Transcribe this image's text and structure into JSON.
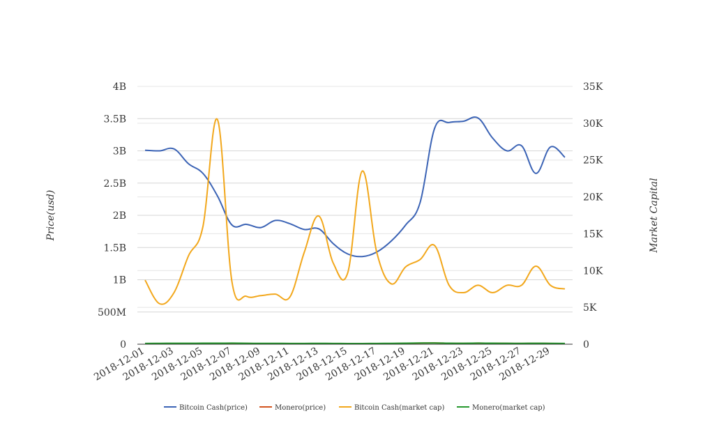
{
  "chart_data": {
    "type": "line",
    "title": "",
    "ylabel": "Price(usd)",
    "y2label": "Market Capital",
    "ylim": [
      0,
      4000000000
    ],
    "y2lim": [
      0,
      35000
    ],
    "left_ticks": [
      "0",
      "500M",
      "1B",
      "1.5B",
      "2B",
      "2.5B",
      "3B",
      "3.5B",
      "4B"
    ],
    "right_ticks": [
      "0",
      "5K",
      "10K",
      "15K",
      "20K",
      "25K",
      "30K",
      "35K"
    ],
    "x": [
      "2018-12-01",
      "2018-12-02",
      "2018-12-03",
      "2018-12-04",
      "2018-12-05",
      "2018-12-06",
      "2018-12-07",
      "2018-12-08",
      "2018-12-09",
      "2018-12-10",
      "2018-12-11",
      "2018-12-12",
      "2018-12-13",
      "2018-12-14",
      "2018-12-15",
      "2018-12-16",
      "2018-12-17",
      "2018-12-18",
      "2018-12-19",
      "2018-12-20",
      "2018-12-21",
      "2018-12-22",
      "2018-12-23",
      "2018-12-24",
      "2018-12-25",
      "2018-12-26",
      "2018-12-27",
      "2018-12-28",
      "2018-12-29",
      "2018-12-30"
    ],
    "x_tick_labels": [
      "2018-12-01",
      "2018-12-03",
      "2018-12-05",
      "2018-12-07",
      "2018-12-09",
      "2018-12-11",
      "2018-12-13",
      "2018-12-15",
      "2018-12-17",
      "2018-12-19",
      "2018-12-21",
      "2018-12-23",
      "2018-12-25",
      "2018-12-27",
      "2018-12-29"
    ],
    "legend_position": "bottom",
    "series": [
      {
        "name": "Bitcoin Cash(price)",
        "axis": "left",
        "color": "#3b63b5",
        "values": [
          3010000000,
          3000000000,
          3030000000,
          2800000000,
          2650000000,
          2300000000,
          1850000000,
          1860000000,
          1810000000,
          1920000000,
          1870000000,
          1780000000,
          1790000000,
          1560000000,
          1400000000,
          1360000000,
          1430000000,
          1600000000,
          1850000000,
          2200000000,
          3350000000,
          3440000000,
          3460000000,
          3510000000,
          3200000000,
          3000000000,
          3080000000,
          2650000000,
          3060000000,
          2900000000
        ]
      },
      {
        "name": "Monero(price)",
        "axis": "left",
        "color": "#d2531e",
        "values": [
          5000000,
          8000000,
          10000000,
          10000000,
          12000000,
          14000000,
          16000000,
          12000000,
          10000000,
          10000000,
          8000000,
          8000000,
          9000000,
          8000000,
          7000000,
          6000000,
          8000000,
          10000000,
          14000000,
          18000000,
          20000000,
          15000000,
          14000000,
          18000000,
          16000000,
          13000000,
          12000000,
          14000000,
          12000000,
          10000000
        ]
      },
      {
        "name": "Bitcoin Cash(market cap)",
        "axis": "right",
        "color": "#f2a71b",
        "values": [
          8700,
          5500,
          7000,
          12000,
          16000,
          30500,
          8500,
          6500,
          6600,
          6800,
          6400,
          12500,
          17400,
          11000,
          9700,
          23500,
          12500,
          8200,
          10500,
          11500,
          13400,
          8000,
          7000,
          8000,
          7000,
          8000,
          8000,
          10600,
          8000,
          7500
        ]
      },
      {
        "name": "Monero(market cap)",
        "axis": "right",
        "color": "#26982e",
        "values": [
          110,
          120,
          130,
          130,
          140,
          140,
          150,
          130,
          120,
          120,
          110,
          110,
          120,
          110,
          100,
          100,
          110,
          120,
          140,
          160,
          170,
          140,
          130,
          150,
          140,
          130,
          120,
          130,
          120,
          110
        ]
      }
    ]
  }
}
